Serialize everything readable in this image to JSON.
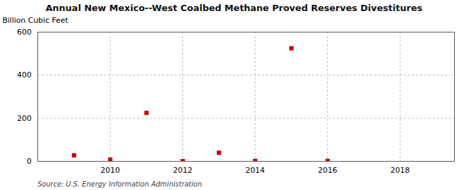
{
  "chart_data": {
    "type": "scatter",
    "title": "Annual New Mexico--West Coalbed Methane Proved Reserves Divestitures",
    "ylabel": "Billion Cubic Feet",
    "source": "Source: U.S. Energy Information Administration",
    "x": [
      2009,
      2010,
      2011,
      2012,
      2013,
      2014,
      2015,
      2016
    ],
    "values": [
      28,
      8,
      225,
      1,
      40,
      2,
      525,
      2
    ],
    "color": "#cc0000",
    "marker": "square",
    "xlim": [
      2008.0,
      2019.5
    ],
    "xticks": [
      2010,
      2012,
      2014,
      2016,
      2018
    ],
    "ylim": [
      0,
      600
    ],
    "yticks": [
      0,
      200,
      400,
      600
    ],
    "grid": true
  }
}
